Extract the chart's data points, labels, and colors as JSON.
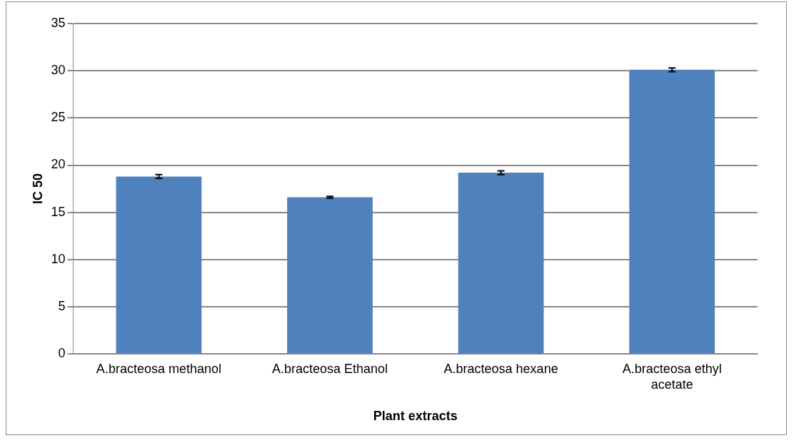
{
  "chart_data": {
    "type": "bar",
    "xlabel": "Plant extracts",
    "ylabel": "IC 50",
    "categories": [
      "A.bracteosa methanol",
      "A.bracteosa Ethanol",
      "A.bracteosa hexane",
      "A.bracteosa ethyl acetate"
    ],
    "values": [
      18.8,
      16.6,
      19.2,
      30.1
    ],
    "errors": [
      0.2,
      0.1,
      0.2,
      0.2
    ],
    "color": "#4f81bd",
    "ylim": [
      0,
      35
    ],
    "yticks": [
      0,
      5,
      10,
      15,
      20,
      25,
      30,
      35
    ],
    "grid": "y"
  }
}
